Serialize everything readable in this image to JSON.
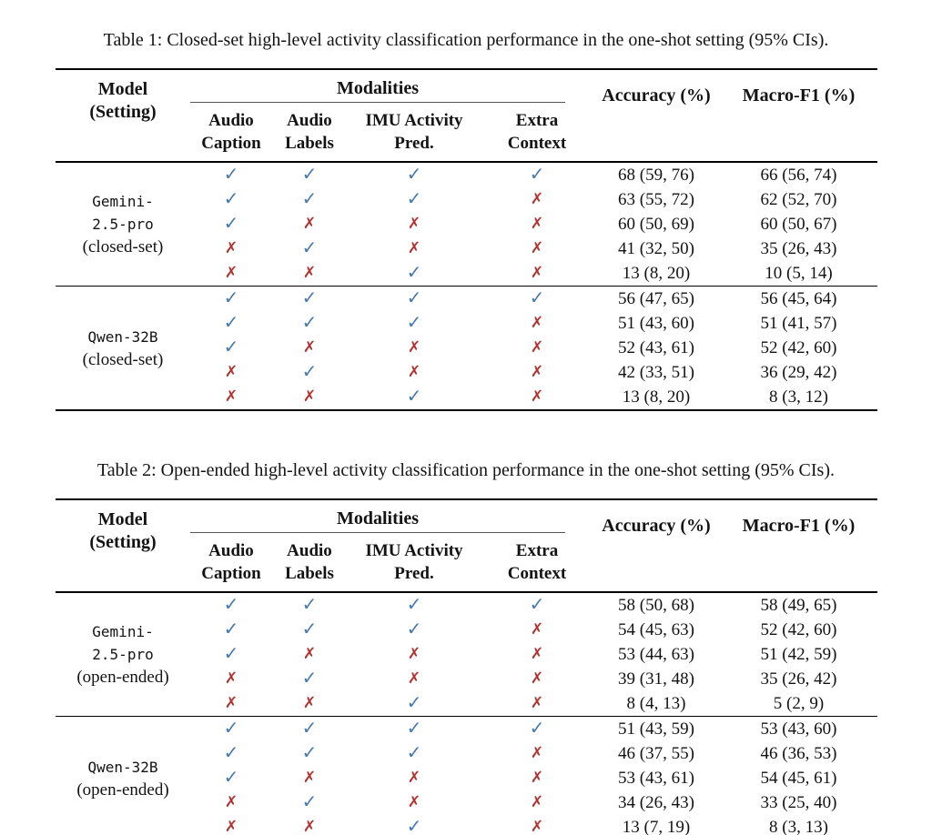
{
  "colors": {
    "check_blue": "#4579af",
    "cross_red": "#b23230",
    "text": "#131313"
  },
  "marks": {
    "check": "✓",
    "cross": "✗"
  },
  "tables": [
    {
      "caption": "Table 1: Closed-set high-level activity classification performance in the one-shot setting (95% CIs).",
      "header": {
        "model_line1": "Model",
        "model_line2": "(Setting)",
        "modalities": "Modalities",
        "subcols": [
          {
            "line1": "Audio",
            "line2": "Caption"
          },
          {
            "line1": "Audio",
            "line2": "Labels"
          },
          {
            "line1": "IMU Activity",
            "line2": "Pred."
          },
          {
            "line1": "Extra",
            "line2": "Context"
          }
        ],
        "accuracy": "Accuracy (%)",
        "macro_f1": "Macro-F1 (%)"
      },
      "groups": [
        {
          "model_lines": [
            "Gemini-",
            "2.5-pro"
          ],
          "setting": "(closed-set)",
          "rows": [
            {
              "modalities": [
                true,
                true,
                true,
                true
              ],
              "accuracy": "68 (59, 76)",
              "macro_f1": "66 (56, 74)"
            },
            {
              "modalities": [
                true,
                true,
                true,
                false
              ],
              "accuracy": "63 (55, 72)",
              "macro_f1": "62 (52, 70)"
            },
            {
              "modalities": [
                true,
                false,
                false,
                false
              ],
              "accuracy": "60 (50, 69)",
              "macro_f1": "60 (50, 67)"
            },
            {
              "modalities": [
                false,
                true,
                false,
                false
              ],
              "accuracy": "41 (32, 50)",
              "macro_f1": "35 (26, 43)"
            },
            {
              "modalities": [
                false,
                false,
                true,
                false
              ],
              "accuracy": "13 (8, 20)",
              "macro_f1": "10 (5, 14)"
            }
          ]
        },
        {
          "model_lines": [
            "Qwen-32B"
          ],
          "setting": "(closed-set)",
          "rows": [
            {
              "modalities": [
                true,
                true,
                true,
                true
              ],
              "accuracy": "56 (47, 65)",
              "macro_f1": "56 (45, 64)"
            },
            {
              "modalities": [
                true,
                true,
                true,
                false
              ],
              "accuracy": "51 (43, 60)",
              "macro_f1": "51 (41, 57)"
            },
            {
              "modalities": [
                true,
                false,
                false,
                false
              ],
              "accuracy": "52 (43, 61)",
              "macro_f1": "52 (42, 60)"
            },
            {
              "modalities": [
                false,
                true,
                false,
                false
              ],
              "accuracy": "42 (33, 51)",
              "macro_f1": "36 (29, 42)"
            },
            {
              "modalities": [
                false,
                false,
                true,
                false
              ],
              "accuracy": "13 (8, 20)",
              "macro_f1": "8 (3, 12)"
            }
          ]
        }
      ]
    },
    {
      "caption": "Table 2: Open-ended high-level activity classification performance in the one-shot setting (95% CIs).",
      "header": {
        "model_line1": "Model",
        "model_line2": "(Setting)",
        "modalities": "Modalities",
        "subcols": [
          {
            "line1": "Audio",
            "line2": "Caption"
          },
          {
            "line1": "Audio",
            "line2": "Labels"
          },
          {
            "line1": "IMU Activity",
            "line2": "Pred."
          },
          {
            "line1": "Extra",
            "line2": "Context"
          }
        ],
        "accuracy": "Accuracy (%)",
        "macro_f1": "Macro-F1 (%)"
      },
      "groups": [
        {
          "model_lines": [
            "Gemini-",
            "2.5-pro"
          ],
          "setting": "(open-ended)",
          "rows": [
            {
              "modalities": [
                true,
                true,
                true,
                true
              ],
              "accuracy": "58 (50, 68)",
              "macro_f1": "58 (49, 65)"
            },
            {
              "modalities": [
                true,
                true,
                true,
                false
              ],
              "accuracy": "54 (45, 63)",
              "macro_f1": "52 (42, 60)"
            },
            {
              "modalities": [
                true,
                false,
                false,
                false
              ],
              "accuracy": "53 (44, 63)",
              "macro_f1": "51 (42, 59)"
            },
            {
              "modalities": [
                false,
                true,
                false,
                false
              ],
              "accuracy": "39 (31, 48)",
              "macro_f1": "35 (26, 42)"
            },
            {
              "modalities": [
                false,
                false,
                true,
                false
              ],
              "accuracy": "8 (4, 13)",
              "macro_f1": "5 (2, 9)"
            }
          ]
        },
        {
          "model_lines": [
            "Qwen-32B"
          ],
          "setting": "(open-ended)",
          "rows": [
            {
              "modalities": [
                true,
                true,
                true,
                true
              ],
              "accuracy": "51 (43, 59)",
              "macro_f1": "53 (43, 60)"
            },
            {
              "modalities": [
                true,
                true,
                true,
                false
              ],
              "accuracy": "46 (37, 55)",
              "macro_f1": "46 (36, 53)"
            },
            {
              "modalities": [
                true,
                false,
                false,
                false
              ],
              "accuracy": "53 (43, 61)",
              "macro_f1": "54 (45, 61)"
            },
            {
              "modalities": [
                false,
                true,
                false,
                false
              ],
              "accuracy": "34 (26, 43)",
              "macro_f1": "33 (25, 40)"
            },
            {
              "modalities": [
                false,
                false,
                true,
                false
              ],
              "accuracy": "13 (7, 19)",
              "macro_f1": "8 (3, 13)"
            }
          ]
        }
      ]
    }
  ]
}
